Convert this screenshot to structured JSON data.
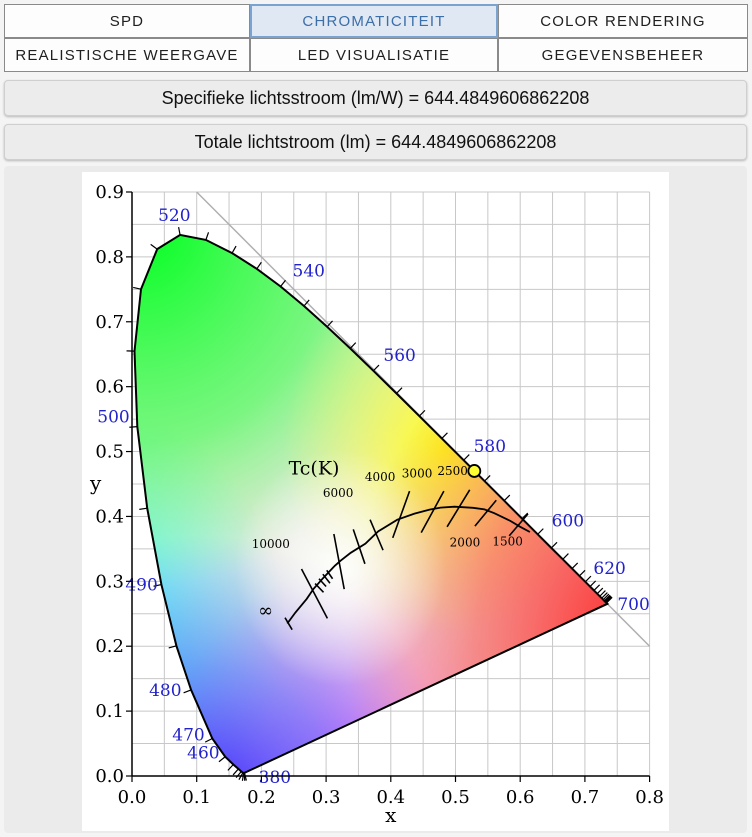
{
  "tabs": [
    {
      "label": "SPD",
      "active": false
    },
    {
      "label": "CHROMATICITEIT",
      "active": true
    },
    {
      "label": "COLOR RENDERING",
      "active": false
    },
    {
      "label": "REALISTISCHE WEERGAVE",
      "active": false
    },
    {
      "label": "LED VISUALISATIE",
      "active": false
    },
    {
      "label": "GEGEVENSBEHEER",
      "active": false
    }
  ],
  "metrics": {
    "specific": "Specifieke lichtsstroom (lm/W) = 644.4849606862208",
    "total": "Totale lichtstroom (lm) = 644.4849606862208"
  },
  "chart_data": {
    "type": "scatter",
    "title": "",
    "xlabel": "x",
    "ylabel": "y",
    "xlim": [
      0,
      0.8
    ],
    "ylim": [
      0,
      0.9
    ],
    "x_ticks": [
      "0.0",
      "0.1",
      "0.2",
      "0.3",
      "0.4",
      "0.5",
      "0.6",
      "0.7",
      "0.8"
    ],
    "y_ticks": [
      "0.0",
      "0.1",
      "0.2",
      "0.3",
      "0.4",
      "0.5",
      "0.6",
      "0.7",
      "0.8",
      "0.9"
    ],
    "grid": true,
    "wavelength_labels": [
      {
        "label": "380",
        "x": 0.1741,
        "y": 0.005
      },
      {
        "label": "460",
        "x": 0.144,
        "y": 0.0297
      },
      {
        "label": "470",
        "x": 0.1241,
        "y": 0.0578
      },
      {
        "label": "480",
        "x": 0.0913,
        "y": 0.1327
      },
      {
        "label": "490",
        "x": 0.0454,
        "y": 0.295
      },
      {
        "label": "500",
        "x": 0.0082,
        "y": 0.5384
      },
      {
        "label": "520",
        "x": 0.0743,
        "y": 0.8338
      },
      {
        "label": "540",
        "x": 0.2296,
        "y": 0.7543
      },
      {
        "label": "560",
        "x": 0.3731,
        "y": 0.6245
      },
      {
        "label": "580",
        "x": 0.5125,
        "y": 0.4866
      },
      {
        "label": "600",
        "x": 0.627,
        "y": 0.3725
      },
      {
        "label": "620",
        "x": 0.6915,
        "y": 0.3083
      },
      {
        "label": "700",
        "x": 0.7347,
        "y": 0.2653
      }
    ],
    "planckian_locus_label": "Tc(K)",
    "cct_labels": [
      "10000",
      "6000",
      "4000",
      "3000",
      "2500",
      "2000",
      "1500",
      "∞"
    ],
    "series": [
      {
        "x": [
          0.5291
        ],
        "y": [
          0.4701
        ]
      }
    ]
  }
}
